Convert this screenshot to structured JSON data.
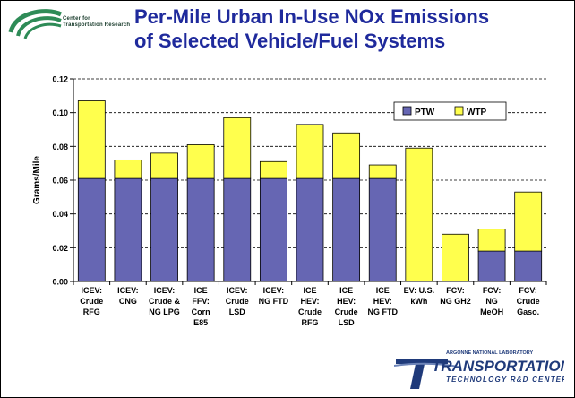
{
  "logo": {
    "line1": "Center for",
    "line2": "Transportation Research",
    "color": "#2e8b57"
  },
  "title": {
    "line1": "Per-Mile Urban In-Use NOx Emissions",
    "line2": "of Selected Vehicle/Fuel Systems"
  },
  "footer_logo": {
    "top_text": "ARGONNE NATIONAL LABORATORY",
    "main_text": "TRANSPORTATION",
    "sub_text": "TECHNOLOGY R&D CENTER"
  },
  "chart_data": {
    "type": "bar",
    "stacked": true,
    "ylabel": "Grams/Mile",
    "xlabel": "",
    "ylim": [
      0,
      0.12
    ],
    "yticks": [
      "0.00",
      "0.02",
      "0.04",
      "0.06",
      "0.08",
      "0.10",
      "0.12"
    ],
    "grid": true,
    "legend_position": "top-right",
    "categories": [
      [
        "ICEV:",
        "Crude",
        "RFG"
      ],
      [
        "ICEV:",
        "CNG"
      ],
      [
        "ICEV:",
        "Crude &",
        "NG LPG"
      ],
      [
        "ICE",
        "FFV:",
        "Corn",
        "E85"
      ],
      [
        "ICEV:",
        "Crude",
        "LSD"
      ],
      [
        "ICEV:",
        "NG FTD"
      ],
      [
        "ICE",
        "HEV:",
        "Crude",
        "RFG"
      ],
      [
        "ICE",
        "HEV:",
        "Crude",
        "LSD"
      ],
      [
        "ICE",
        "HEV:",
        "NG FTD"
      ],
      [
        "EV: U.S.",
        "kWh"
      ],
      [
        "FCV:",
        "NG GH2"
      ],
      [
        "FCV:",
        "NG",
        "MeOH"
      ],
      [
        "FCV:",
        "Crude",
        "Gaso."
      ]
    ],
    "series": [
      {
        "name": "PTW",
        "color": "#6666b3",
        "values": [
          0.061,
          0.061,
          0.061,
          0.061,
          0.061,
          0.061,
          0.061,
          0.061,
          0.061,
          0.0,
          0.0,
          0.018,
          0.018
        ]
      },
      {
        "name": "WTP",
        "color": "#ffff4d",
        "values": [
          0.046,
          0.011,
          0.015,
          0.02,
          0.036,
          0.01,
          0.032,
          0.027,
          0.008,
          0.079,
          0.028,
          0.013,
          0.035
        ]
      }
    ]
  }
}
